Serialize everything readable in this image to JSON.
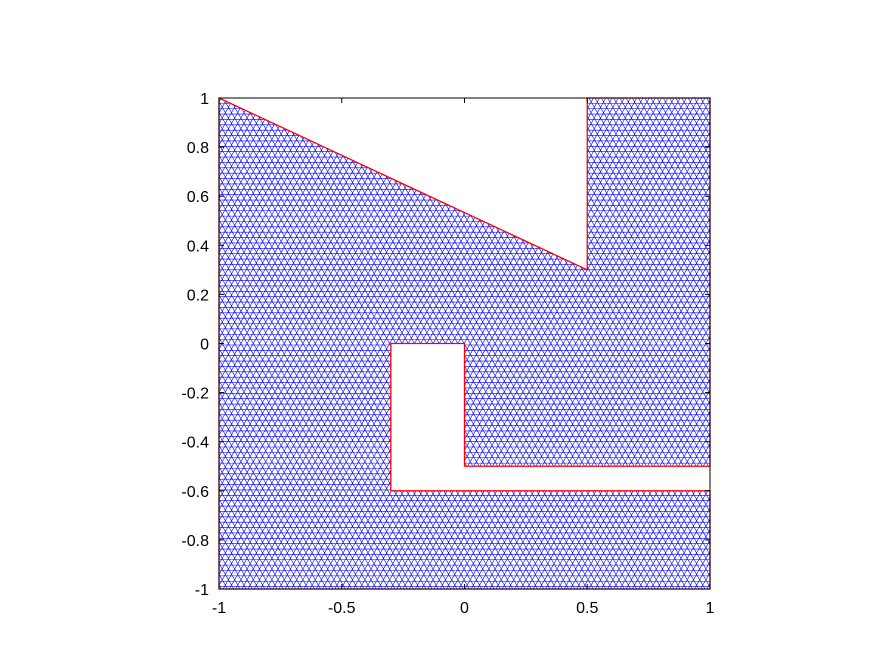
{
  "chart_data": {
    "type": "mesh",
    "xlim": [
      -1,
      1
    ],
    "ylim": [
      -1,
      1
    ],
    "x_ticks": [
      "-1",
      "-0.5",
      "0",
      "0.5",
      "1"
    ],
    "y_ticks": [
      "1",
      "0.8",
      "0.6",
      "0.4",
      "0.2",
      "0",
      "-0.2",
      "-0.4",
      "-0.6",
      "-0.8",
      "-1"
    ],
    "x_tick_values": [
      -1,
      -0.5,
      0,
      0.5,
      1
    ],
    "y_tick_values": [
      1,
      0.8,
      0.6,
      0.4,
      0.2,
      0,
      -0.2,
      -0.4,
      -0.6,
      -0.8,
      -1
    ],
    "mesh_color": "#0000ff",
    "boundary_color": "#ff0000",
    "domain_boundary": [
      [
        -1,
        1
      ],
      [
        0.5,
        0.3
      ],
      [
        0.5,
        1
      ],
      [
        1,
        1
      ],
      [
        1,
        -0.5
      ],
      [
        0,
        -0.5
      ],
      [
        0,
        0
      ],
      [
        -0.3,
        0
      ],
      [
        -0.3,
        -0.6
      ],
      [
        1,
        -0.6
      ],
      [
        1,
        -1
      ],
      [
        -1,
        -1
      ]
    ]
  }
}
